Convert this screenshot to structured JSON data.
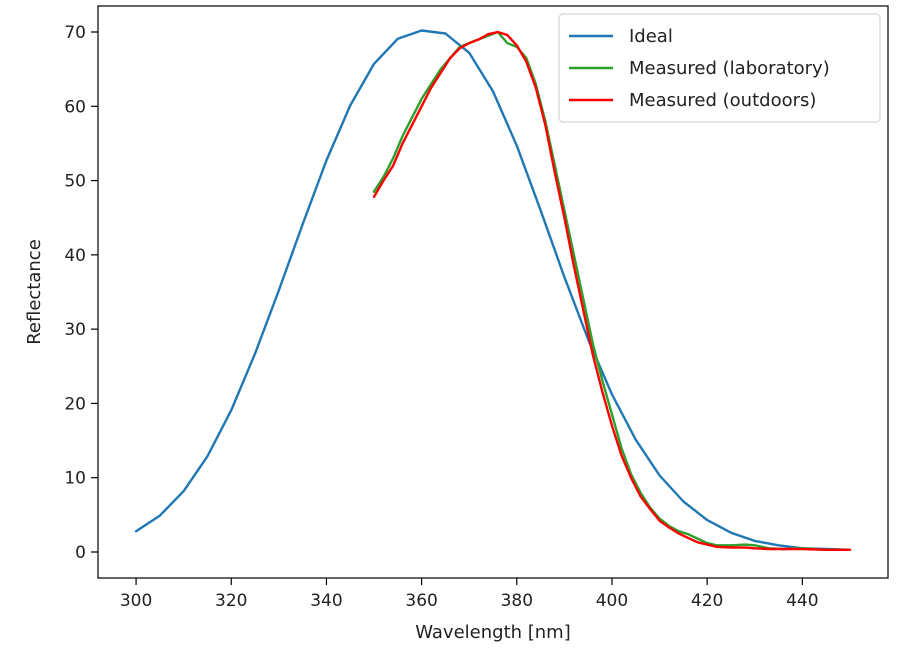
{
  "chart_data": {
    "type": "line",
    "xlabel": "Wavelength [nm]",
    "ylabel": "Reflectance",
    "xlim": [
      292,
      458
    ],
    "ylim": [
      -3.5,
      73.5
    ],
    "xticks": [
      300,
      320,
      340,
      360,
      380,
      400,
      420,
      440
    ],
    "yticks": [
      0,
      10,
      20,
      30,
      40,
      50,
      60,
      70
    ],
    "grid": false,
    "legend_position": "top-right",
    "series": [
      {
        "name": "Ideal",
        "color": "#1f77b4",
        "x": [
          300,
          305,
          310,
          315,
          320,
          325,
          330,
          335,
          340,
          345,
          350,
          355,
          360,
          365,
          370,
          375,
          380,
          385,
          390,
          395,
          400,
          405,
          410,
          415,
          420,
          425,
          430,
          435,
          440,
          445,
          450
        ],
        "y": [
          2.8,
          4.9,
          8.2,
          12.9,
          19.1,
          26.7,
          35.2,
          44.1,
          52.7,
          60.1,
          65.7,
          69.1,
          70.2,
          69.8,
          67.2,
          62.0,
          54.7,
          46.0,
          37.0,
          28.6,
          21.2,
          15.1,
          10.3,
          6.8,
          4.3,
          2.6,
          1.5,
          0.9,
          0.5,
          0.4,
          0.3
        ]
      },
      {
        "name": "Measured (laboratory)",
        "color": "#2ca02c",
        "x": [
          350,
          352,
          354,
          356,
          358,
          360,
          362,
          364,
          366,
          368,
          370,
          372,
          374,
          376,
          378,
          380,
          382,
          384,
          386,
          388,
          390,
          392,
          394,
          396,
          398,
          400,
          402,
          404,
          406,
          408,
          410,
          412,
          414,
          416,
          418,
          420,
          422,
          425,
          428,
          430,
          433,
          436,
          440,
          445,
          450
        ],
        "y": [
          48.5,
          50.5,
          53,
          56,
          58.5,
          61,
          63,
          65,
          66.5,
          68,
          68.5,
          69,
          69.5,
          70,
          68.5,
          68,
          66.5,
          63,
          58,
          52,
          46,
          40,
          34,
          28,
          23,
          18.5,
          14,
          10.5,
          8,
          6,
          4.5,
          3.5,
          2.8,
          2.4,
          1.8,
          1.2,
          0.9,
          0.9,
          1.0,
          0.9,
          0.5,
          0.4,
          0.5,
          0.3,
          0.3
        ]
      },
      {
        "name": "Measured (outdoors)",
        "color": "#ff0000",
        "x": [
          350,
          352,
          354,
          356,
          358,
          360,
          362,
          364,
          366,
          368,
          370,
          372,
          374,
          376,
          378,
          380,
          382,
          384,
          386,
          388,
          390,
          392,
          394,
          396,
          398,
          400,
          402,
          404,
          406,
          408,
          410,
          412,
          414,
          416,
          418,
          420,
          422,
          425,
          428,
          430,
          433,
          436,
          440,
          445,
          450
        ],
        "y": [
          47.8,
          50,
          52,
          55,
          57.5,
          60,
          62.5,
          64.5,
          66.5,
          67.8,
          68.5,
          69,
          69.7,
          70,
          69.6,
          68.2,
          66,
          62.5,
          57.5,
          51,
          45,
          38.5,
          32.5,
          26.5,
          21.5,
          17,
          13,
          10,
          7.5,
          5.8,
          4.2,
          3.3,
          2.5,
          1.9,
          1.3,
          1.0,
          0.7,
          0.6,
          0.6,
          0.5,
          0.4,
          0.4,
          0.4,
          0.3,
          0.3
        ]
      }
    ]
  }
}
